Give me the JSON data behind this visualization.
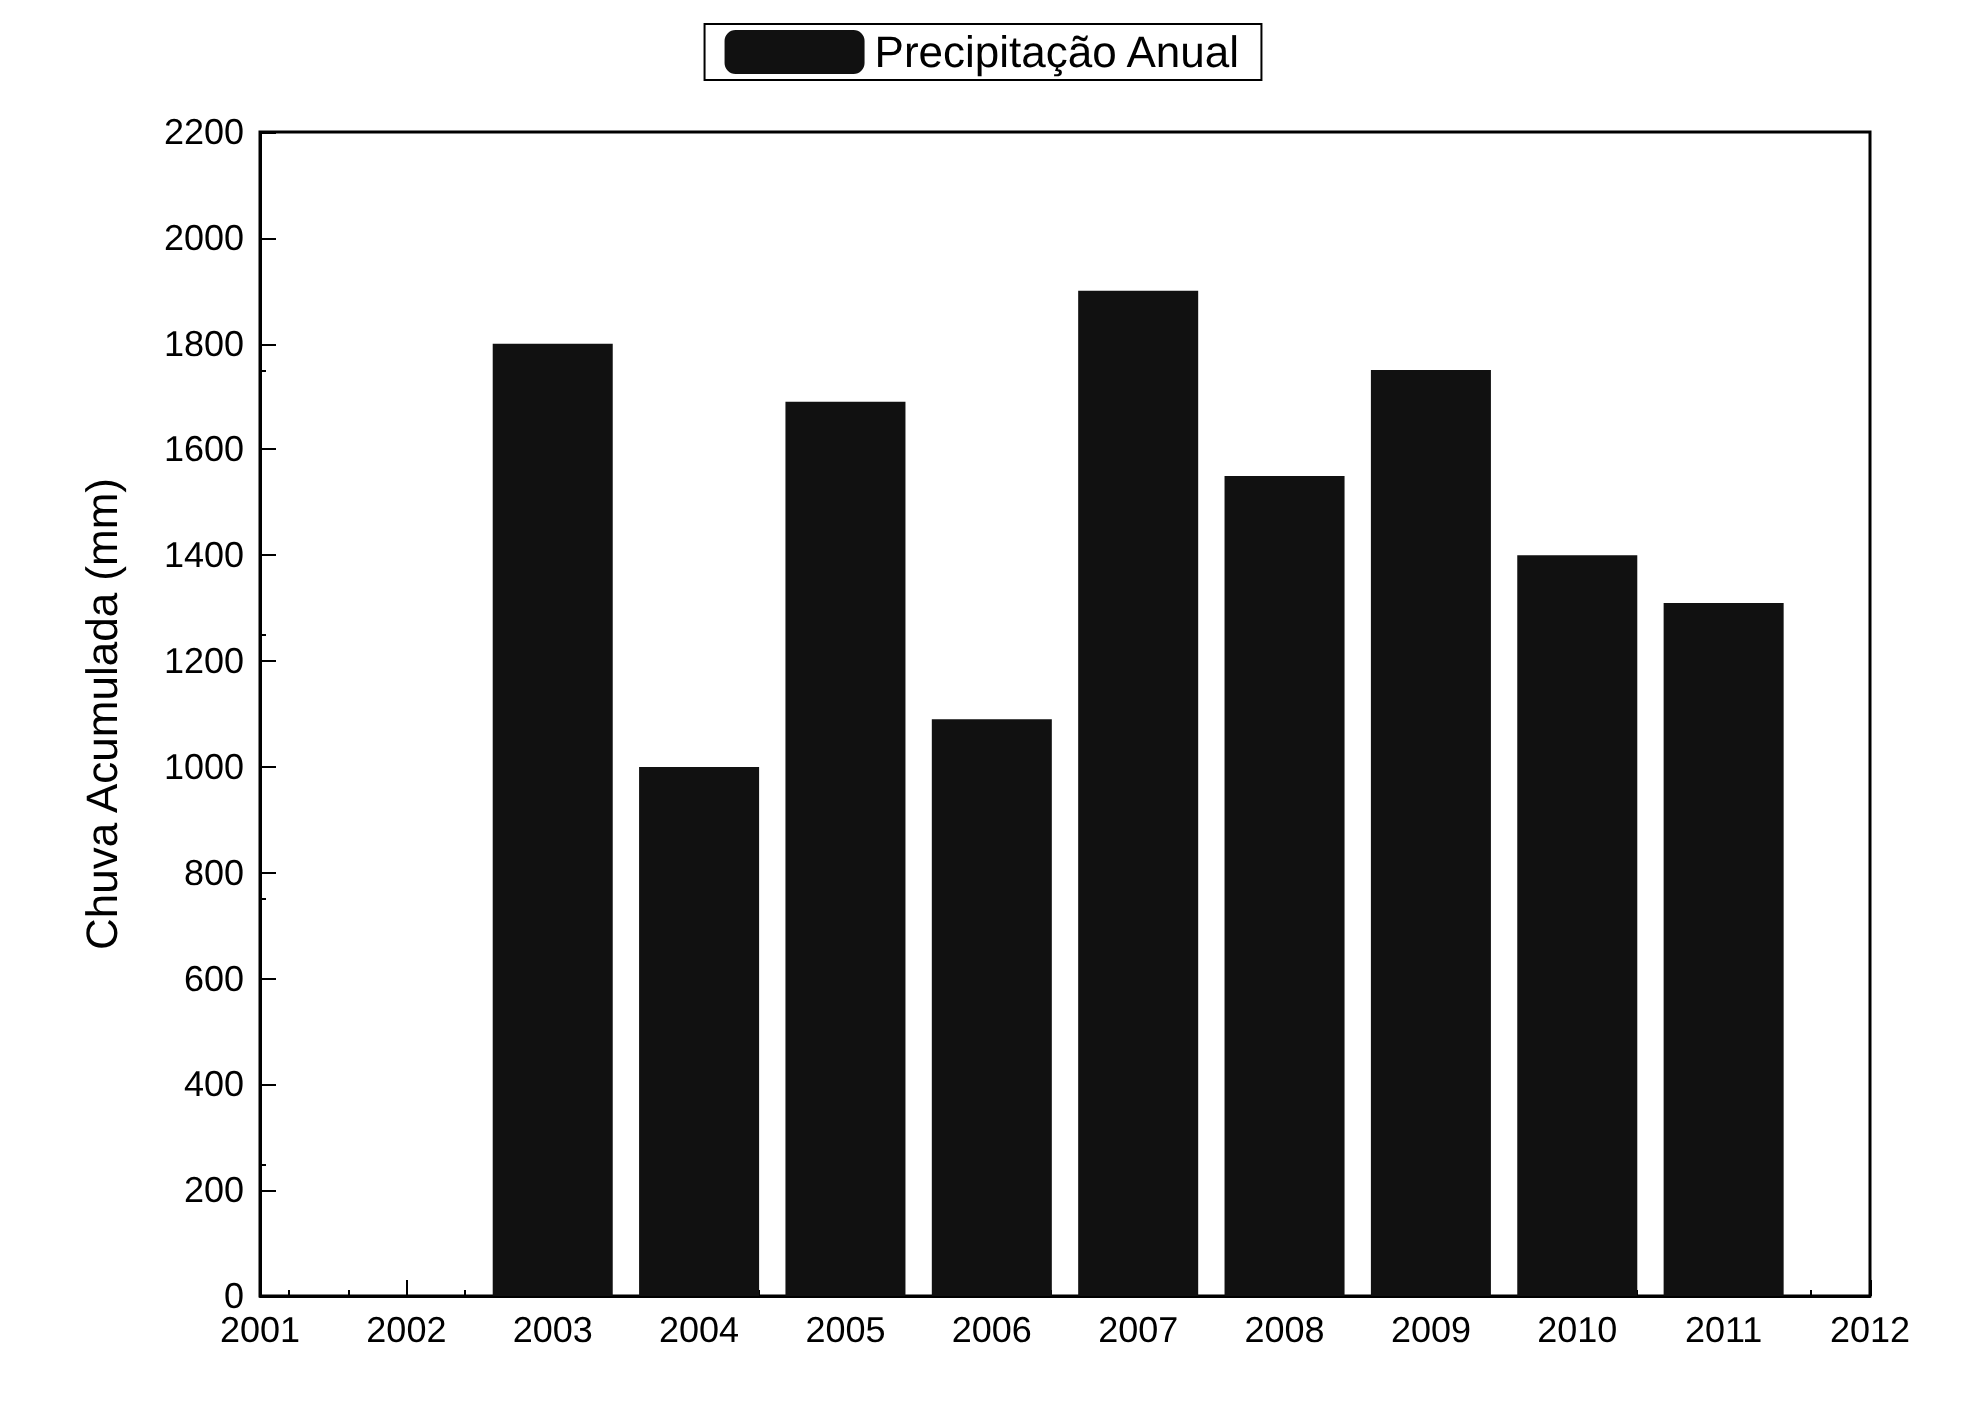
{
  "chart_data": {
    "type": "bar",
    "ylabel": "Chuva Acumulada (mm)",
    "x": [
      2003,
      2004,
      2005,
      2006,
      2007,
      2008,
      2009,
      2010,
      2011
    ],
    "series": [
      {
        "name": "Precipitação Anual",
        "color": "#111111",
        "values": [
          1800,
          1000,
          1690,
          1090,
          1900,
          1550,
          1750,
          1400,
          1310
        ]
      }
    ],
    "xlim": [
      2001,
      2012
    ],
    "xticks": [
      2001,
      2002,
      2003,
      2004,
      2005,
      2006,
      2007,
      2008,
      2009,
      2010,
      2011,
      2012
    ],
    "ylim": [
      0,
      2200
    ],
    "yticks": [
      0,
      200,
      400,
      600,
      800,
      1000,
      1200,
      1400,
      1600,
      1800,
      2000,
      2200
    ],
    "grid": false,
    "legend": "top"
  }
}
